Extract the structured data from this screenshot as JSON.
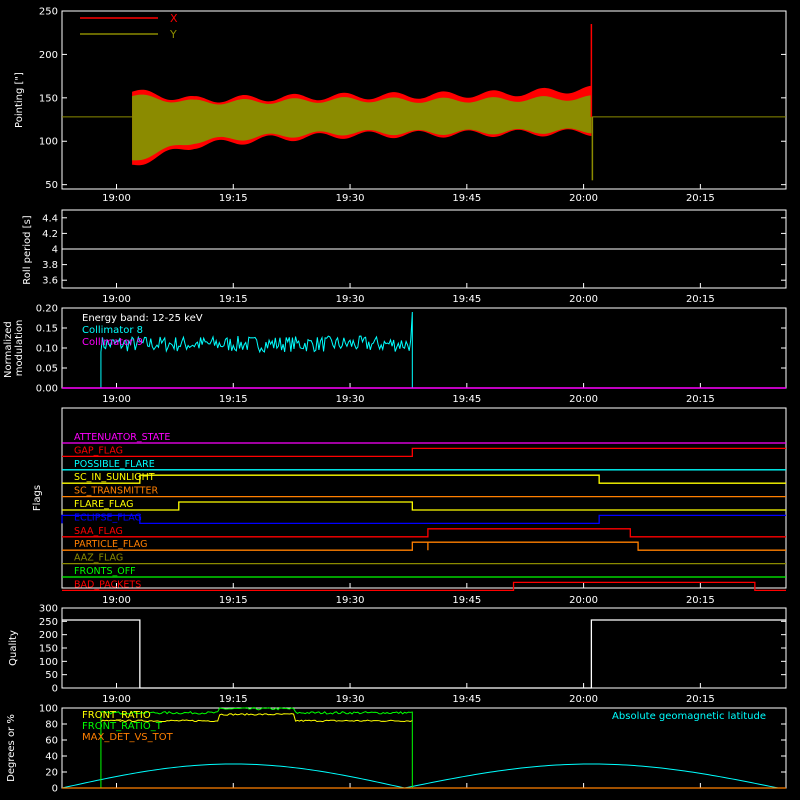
{
  "time_ticks": [
    "19:00",
    "19:15",
    "19:30",
    "19:45",
    "20:00",
    "20:15"
  ],
  "colors": {
    "frame": "#ffffff",
    "x_pointing": "#ff0000",
    "y_pointing": "#8b8b00",
    "collimator8": "#00ffff",
    "collimator9": "#ff00ff",
    "front_ratio": "#ffff00",
    "front_ratio_t": "#00ff00",
    "max_det": "#ff7f00",
    "geomag": "#00ffff"
  },
  "chart_data": [
    {
      "id": "pointing",
      "type": "area",
      "ylabel": "Pointing [\"]",
      "ylim": [
        45,
        250
      ],
      "yticks": [
        50,
        100,
        150,
        200,
        250
      ],
      "legend": [
        "X",
        "Y"
      ],
      "time_range": [
        "18:53",
        "20:26"
      ],
      "baseline": 128,
      "data_span": [
        "19:02",
        "20:01"
      ],
      "x_band": {
        "t": [
          "19:02",
          "19:10",
          "19:20",
          "19:30",
          "19:40",
          "19:50",
          "20:00"
        ],
        "min": [
          73,
          95,
          103,
          107,
          108,
          109,
          110
        ],
        "max": [
          157,
          148,
          150,
          152,
          153,
          155,
          160
        ]
      },
      "y_band": {
        "t": [
          "19:02",
          "19:10",
          "19:20",
          "19:30",
          "19:40",
          "19:50",
          "20:00"
        ],
        "min": [
          78,
          100,
          106,
          110,
          110,
          111,
          112
        ],
        "max": [
          152,
          145,
          146,
          148,
          147,
          148,
          150
        ]
      },
      "spike": {
        "t": "20:01",
        "x_max": 235,
        "y_min": 55
      }
    },
    {
      "id": "roll",
      "type": "line",
      "ylabel": "Roll period [s]",
      "ylim": [
        3.5,
        4.5
      ],
      "yticks": [
        3.6,
        3.8,
        4.0,
        4.2,
        4.4
      ],
      "value": 4.0
    },
    {
      "id": "modulation",
      "type": "line",
      "ylabel": "Normalized modulation",
      "ylim": [
        0,
        0.2
      ],
      "yticks": [
        "0.00",
        "0.05",
        "0.10",
        "0.15",
        "0.20"
      ],
      "annotation": "Energy band: 12-25 keV",
      "series": [
        {
          "name": "Collimator 8",
          "t_start": "18:58",
          "t_end": "19:38",
          "mean": 0.11,
          "spread": 0.02,
          "max": 0.19
        },
        {
          "name": "Collimator 9",
          "value": 0.0
        }
      ]
    },
    {
      "id": "flags",
      "type": "line",
      "ylabel": "Flags",
      "flags": [
        {
          "name": "ATTENUATOR_STATE",
          "color": "#ff00ff",
          "steps": []
        },
        {
          "name": "GAP_FLAG",
          "color": "#ff0000",
          "steps": [
            [
              "18:58",
              0
            ],
            [
              "19:38",
              1
            ]
          ]
        },
        {
          "name": "POSSIBLE_FLARE",
          "color": "#00ffff",
          "steps": []
        },
        {
          "name": "SC_IN_SUNLIGHT",
          "color": "#ffff00",
          "steps": [
            [
              "19:03",
              1
            ],
            [
              "20:02",
              0
            ]
          ]
        },
        {
          "name": "SC_TRANSMITTER",
          "color": "#ff7f00",
          "steps": []
        },
        {
          "name": "FLARE_FLAG",
          "color": "#ffff00",
          "steps": [
            [
              "19:08",
              1
            ],
            [
              "19:38",
              0
            ]
          ]
        },
        {
          "name": "ECLIPSE_FLAG",
          "color": "#0000ff",
          "steps": [
            [
              "18:53",
              1
            ],
            [
              "19:03",
              0
            ],
            [
              "20:02",
              1
            ]
          ]
        },
        {
          "name": "SAA_FLAG",
          "color": "#ff0000",
          "steps": [
            [
              "19:40",
              1
            ],
            [
              "20:06",
              0
            ]
          ]
        },
        {
          "name": "PARTICLE_FLAG",
          "color": "#ff7f00",
          "steps": [
            [
              "19:38",
              1
            ],
            [
              "19:40",
              0
            ],
            [
              "19:40",
              1
            ],
            [
              "20:07",
              0
            ]
          ]
        },
        {
          "name": "AAZ_FLAG",
          "color": "#8b8b00",
          "steps": []
        },
        {
          "name": "FRONTS_OFF",
          "color": "#00ff00",
          "steps": []
        },
        {
          "name": "BAD_PACKETS",
          "color": "#ff0000",
          "steps": [
            [
              "19:51",
              1
            ],
            [
              "20:22",
              0
            ]
          ]
        }
      ]
    },
    {
      "id": "quality",
      "type": "line",
      "ylabel": "Quality",
      "ylim": [
        0,
        300
      ],
      "yticks": [
        0,
        50,
        100,
        150,
        200,
        250,
        300
      ],
      "high": 255,
      "low_span": [
        "19:03",
        "20:01"
      ]
    },
    {
      "id": "ratios",
      "type": "line",
      "ylabel": "Degrees or %",
      "ylim": [
        0,
        100
      ],
      "yticks": [
        0,
        20,
        40,
        60,
        80,
        100
      ],
      "legend": [
        "FRONT_RATIO",
        "FRONT_RATIO_T",
        "MAX_DET_VS_TOT"
      ],
      "annotation": "Absolute geomagnetic latitude",
      "front_ratio_t": {
        "t_start": "18:58",
        "t_end": "19:38",
        "value": 94
      },
      "front_ratio": {
        "t_start": "18:58",
        "t_end": "19:38",
        "value": 84
      },
      "geomag_latitude": {
        "max": 30,
        "min": 0,
        "min_times": [
          "18:53",
          "19:37",
          "20:25"
        ]
      }
    }
  ]
}
